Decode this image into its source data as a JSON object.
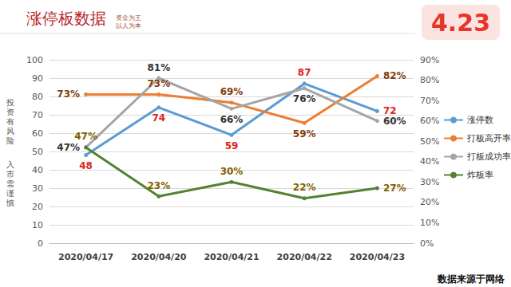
{
  "chart_data": {
    "type": "line",
    "title": "涨停板数据",
    "subtitle": "资金为王\n以人为本",
    "annotations": [
      "4.23",
      "投资有风险",
      "入市需谨慎",
      "数据来源于网络"
    ],
    "categories": [
      "2020/04/17",
      "2020/04/20",
      "2020/04/21",
      "2020/04/22",
      "2020/04/23"
    ],
    "series": [
      {
        "name": "涨停数",
        "color": "#5b9bd5",
        "values": [
          48,
          74,
          59,
          87,
          72
        ]
      },
      {
        "name": "打板高开率",
        "color": "#ed7d31",
        "axis": "y2",
        "values": [
          73,
          73,
          69,
          59,
          82
        ],
        "value_labels": [
          "73%",
          "73%",
          "69%",
          "59%",
          "82%"
        ]
      },
      {
        "name": "打板成功率",
        "color": "#a5a5a5",
        "axis": "y2",
        "values": [
          47,
          81,
          66,
          76,
          60
        ],
        "value_labels": [
          "47%",
          "81%",
          "66%",
          "76%",
          "60%"
        ]
      },
      {
        "name": "炸板率",
        "color": "#548235",
        "axis": "y2",
        "values": [
          47,
          23,
          30,
          22,
          27
        ],
        "value_labels": [
          "47%",
          "23%",
          "30%",
          "22%",
          "27%"
        ]
      }
    ],
    "ylim": [
      0,
      100
    ],
    "yticks": [
      0,
      10,
      20,
      30,
      40,
      50,
      60,
      70,
      80,
      90,
      100
    ],
    "y2lim": [
      0,
      90
    ],
    "y2ticks": [
      {
        "value": 0,
        "label": "0%"
      },
      {
        "value": 10,
        "label": "10%"
      },
      {
        "value": 20,
        "label": "20%"
      },
      {
        "value": 30,
        "label": "30%"
      },
      {
        "value": 40,
        "label": "40%"
      },
      {
        "value": 50,
        "label": "50%"
      },
      {
        "value": 60,
        "label": "60%"
      },
      {
        "value": 70,
        "label": "70%"
      },
      {
        "value": 80,
        "label": "80%"
      },
      {
        "value": 90,
        "label": "90%"
      }
    ],
    "grid": true,
    "legend": "right",
    "data_labels": true,
    "marker": "circle"
  }
}
